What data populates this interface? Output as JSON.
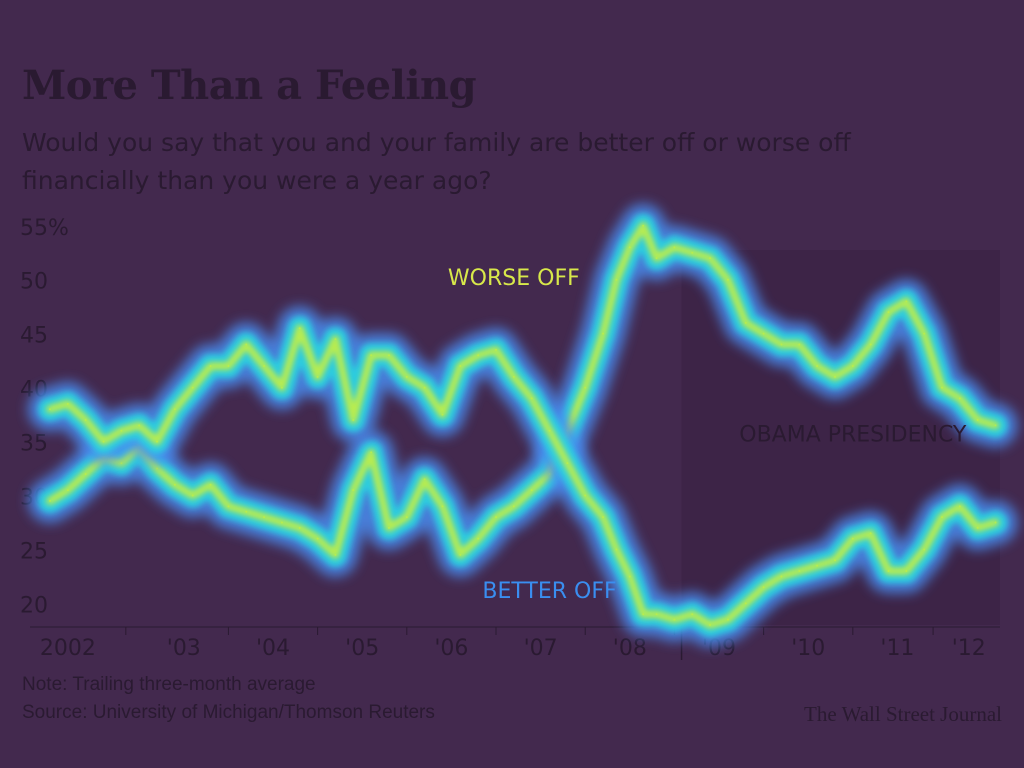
{
  "header": {
    "title": "More Than a Feeling",
    "subtitle": "Would you say that you and your family are better off or worse off financially than you were a year ago?"
  },
  "footer": {
    "note": "Note: Trailing three-month average",
    "source": "Source: University of Michigan/Thomson Reuters",
    "credit": "The Wall Street Journal"
  },
  "colors": {
    "background": "#43294e",
    "text": "#2a1a31",
    "glow_outer": "#4a8cf0",
    "glow_mid": "#29d4e0",
    "glow_core": "#c8f040",
    "presidency_shade": "#3d2447"
  },
  "chart_data": {
    "type": "line",
    "ylim": [
      18,
      56
    ],
    "xlim": [
      2002.0,
      2012.65
    ],
    "y_ticks": [
      {
        "value": 55,
        "label": "55%"
      },
      {
        "value": 50,
        "label": "50"
      },
      {
        "value": 45,
        "label": "45"
      },
      {
        "value": 40,
        "label": "40"
      },
      {
        "value": 35,
        "label": "35"
      },
      {
        "value": 30,
        "label": "30"
      },
      {
        "value": 25,
        "label": "25"
      },
      {
        "value": 20,
        "label": "20"
      }
    ],
    "x_ticks": [
      {
        "value": 2002.2,
        "label": "2002"
      },
      {
        "value": 2003.5,
        "label": "'03"
      },
      {
        "value": 2004.5,
        "label": "'04"
      },
      {
        "value": 2005.5,
        "label": "'05"
      },
      {
        "value": 2006.5,
        "label": "'06"
      },
      {
        "value": 2007.5,
        "label": "'07"
      },
      {
        "value": 2008.5,
        "label": "'08"
      },
      {
        "value": 2009.5,
        "label": "'09"
      },
      {
        "value": 2010.5,
        "label": "'10"
      },
      {
        "value": 2011.5,
        "label": "'11"
      },
      {
        "value": 2012.3,
        "label": "'12"
      }
    ],
    "annotations": [
      {
        "text": "OBAMA PRESIDENCY",
        "x": 2011.0,
        "y": 35.0
      },
      {
        "text": "WORSE OFF",
        "x": 2007.2,
        "y": 49.5
      },
      {
        "text": "BETTER OFF",
        "x": 2007.6,
        "y": 20.5
      }
    ],
    "presidency_start": 2009.08,
    "series": [
      {
        "name": "WORSE OFF",
        "x": [
          2002.0,
          2002.2,
          2002.4,
          2002.6,
          2002.8,
          2003.0,
          2003.2,
          2003.4,
          2003.6,
          2003.8,
          2004.0,
          2004.2,
          2004.4,
          2004.6,
          2004.8,
          2005.0,
          2005.2,
          2005.4,
          2005.6,
          2005.8,
          2006.0,
          2006.2,
          2006.4,
          2006.6,
          2006.8,
          2007.0,
          2007.2,
          2007.4,
          2007.6,
          2007.8,
          2008.0,
          2008.2,
          2008.35,
          2008.5,
          2008.65,
          2008.8,
          2009.0,
          2009.2,
          2009.4,
          2009.6,
          2009.8,
          2010.0,
          2010.2,
          2010.4,
          2010.6,
          2010.8,
          2011.0,
          2011.2,
          2011.4,
          2011.6,
          2011.8,
          2012.0,
          2012.2,
          2012.4,
          2012.6
        ],
        "values": [
          29.5,
          30.5,
          32.0,
          33.5,
          33.0,
          34.5,
          32.5,
          31.0,
          30.0,
          31.0,
          29.0,
          28.5,
          28.0,
          27.5,
          27.0,
          26.0,
          24.5,
          30.5,
          34.0,
          27.0,
          28.0,
          31.5,
          29.0,
          24.5,
          26.0,
          28.0,
          29.0,
          30.5,
          32.0,
          36.0,
          40.0,
          45.0,
          50.0,
          53.0,
          55.0,
          52.0,
          53.0,
          52.5,
          52.0,
          50.0,
          46.0,
          45.0,
          44.0,
          44.0,
          42.0,
          41.0,
          42.0,
          44.0,
          47.0,
          48.0,
          45.0,
          40.0,
          39.0,
          37.0,
          36.5
        ]
      },
      {
        "name": "BETTER OFF",
        "x": [
          2002.0,
          2002.2,
          2002.4,
          2002.6,
          2002.8,
          2003.0,
          2003.2,
          2003.4,
          2003.6,
          2003.8,
          2004.0,
          2004.2,
          2004.4,
          2004.6,
          2004.8,
          2005.0,
          2005.2,
          2005.4,
          2005.6,
          2005.8,
          2006.0,
          2006.2,
          2006.4,
          2006.6,
          2006.8,
          2007.0,
          2007.2,
          2007.4,
          2007.6,
          2007.8,
          2008.0,
          2008.2,
          2008.35,
          2008.5,
          2008.65,
          2008.8,
          2009.0,
          2009.2,
          2009.4,
          2009.6,
          2009.8,
          2010.0,
          2010.2,
          2010.4,
          2010.6,
          2010.8,
          2011.0,
          2011.2,
          2011.4,
          2011.6,
          2011.8,
          2012.0,
          2012.2,
          2012.4,
          2012.6
        ],
        "values": [
          38.0,
          38.5,
          37.0,
          35.0,
          36.0,
          36.5,
          35.0,
          38.0,
          40.0,
          42.0,
          42.0,
          44.0,
          42.0,
          40.0,
          45.5,
          41.0,
          44.5,
          37.0,
          43.0,
          43.0,
          41.0,
          40.0,
          37.5,
          42.0,
          43.0,
          43.5,
          41.0,
          39.0,
          36.0,
          33.0,
          30.0,
          28.0,
          25.0,
          22.5,
          19.0,
          19.0,
          18.5,
          19.0,
          18.0,
          18.5,
          20.0,
          21.5,
          22.5,
          23.0,
          23.5,
          24.0,
          26.0,
          26.5,
          23.0,
          23.0,
          25.0,
          28.0,
          29.0,
          27.0,
          27.5
        ]
      }
    ]
  }
}
